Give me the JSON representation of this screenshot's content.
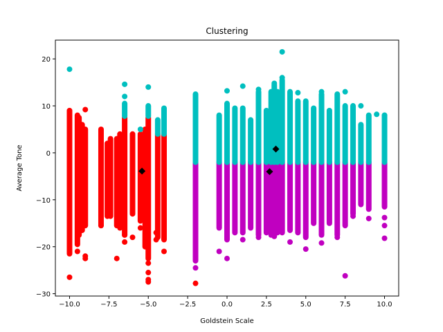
{
  "chart_data": {
    "type": "scatter",
    "title": "Clustering",
    "xlabel": "Goldstein Scale",
    "ylabel": "Average Tone",
    "xlim": [
      -10.9,
      10.9
    ],
    "ylim": [
      -30.5,
      24
    ],
    "xticks": [
      -10.0,
      -7.5,
      -5.0,
      -2.5,
      0.0,
      2.5,
      5.0,
      7.5,
      10.0
    ],
    "xtick_labels": [
      "−10.0",
      "−7.5",
      "−5.0",
      "−2.5",
      "0.0",
      "2.5",
      "5.0",
      "7.5",
      "10.0"
    ],
    "yticks": [
      -30,
      -20,
      -10,
      0,
      10,
      20
    ],
    "ytick_labels": [
      "−30",
      "−20",
      "−10",
      "0",
      "10",
      "20"
    ],
    "grid": false,
    "series": [
      {
        "color": "#ff0000",
        "columns": [
          {
            "x": -10.0,
            "ymin": -21.5,
            "ymax": 9.0
          },
          {
            "x": -9.5,
            "ymin": -19.5,
            "ymax": 8.0
          },
          {
            "x": -9.4,
            "ymin": -17.5,
            "ymax": 7.5
          },
          {
            "x": -9.2,
            "ymin": -16.5,
            "ymax": 6.0
          },
          {
            "x": -9.0,
            "ymin": -15.5,
            "ymax": 5.0
          },
          {
            "x": -8.0,
            "ymin": -15.5,
            "ymax": 5.0
          },
          {
            "x": -7.6,
            "ymin": -13.5,
            "ymax": 2.0
          },
          {
            "x": -7.4,
            "ymin": -13.5,
            "ymax": 3.0
          },
          {
            "x": -7.0,
            "ymin": -15.5,
            "ymax": 3.0
          },
          {
            "x": -6.8,
            "ymin": -16.0,
            "ymax": 4.0
          },
          {
            "x": -6.5,
            "ymin": -17.5,
            "ymax": 7.5
          },
          {
            "x": -6.0,
            "ymin": -13.0,
            "ymax": 4.0
          },
          {
            "x": -5.5,
            "ymin": -14.5,
            "ymax": 4.0
          },
          {
            "x": -5.2,
            "ymin": -20.0,
            "ymax": 5.0
          },
          {
            "x": -5.0,
            "ymin": -22.5,
            "ymax": 7.5
          },
          {
            "x": -4.4,
            "ymin": -18.0,
            "ymax": 4.0
          },
          {
            "x": -4.0,
            "ymin": -18.5,
            "ymax": 4.0
          }
        ],
        "points": [
          [
            -10.0,
            -26.5
          ],
          [
            -10.0,
            -21.0
          ],
          [
            -9.5,
            -21.0
          ],
          [
            -9.0,
            -22.5
          ],
          [
            -9.0,
            -22.0
          ],
          [
            -9.0,
            9.2
          ],
          [
            -8.0,
            -15.5
          ],
          [
            -7.0,
            -22.5
          ],
          [
            -6.5,
            -19.0
          ],
          [
            -6.5,
            -17.5
          ],
          [
            -6.0,
            -18.0
          ],
          [
            -5.5,
            -16.0
          ],
          [
            -5.0,
            -23.5
          ],
          [
            -5.0,
            -27.0
          ],
          [
            -5.0,
            -27.5
          ],
          [
            -5.0,
            -25.5
          ],
          [
            -4.5,
            -17.0
          ],
          [
            -4.5,
            -18.5
          ],
          [
            -4.0,
            -21.0
          ],
          [
            -2.0,
            -27.8
          ]
        ]
      },
      {
        "color": "#c000c0",
        "columns": [
          {
            "x": -2.0,
            "ymin": -23.0,
            "ymax": -2.0
          },
          {
            "x": -0.5,
            "ymin": -16.0,
            "ymax": -2.0
          },
          {
            "x": 0.0,
            "ymin": -18.5,
            "ymax": -2.0
          },
          {
            "x": 0.5,
            "ymin": -17.0,
            "ymax": -2.0
          },
          {
            "x": 1.0,
            "ymin": -17.0,
            "ymax": -2.0
          },
          {
            "x": 1.5,
            "ymin": -16.0,
            "ymax": -2.0
          },
          {
            "x": 2.0,
            "ymin": -17.5,
            "ymax": -2.0
          },
          {
            "x": 2.5,
            "ymin": -17.0,
            "ymax": -2.0
          },
          {
            "x": 2.8,
            "ymin": -17.5,
            "ymax": -2.0
          },
          {
            "x": 3.0,
            "ymin": -17.5,
            "ymax": -2.0
          },
          {
            "x": 3.2,
            "ymin": -17.0,
            "ymax": -2.0
          },
          {
            "x": 3.5,
            "ymin": -17.0,
            "ymax": -2.0
          },
          {
            "x": 4.0,
            "ymin": -16.5,
            "ymax": -2.0
          },
          {
            "x": 4.5,
            "ymin": -17.0,
            "ymax": -2.0
          },
          {
            "x": 5.0,
            "ymin": -18.0,
            "ymax": -2.0
          },
          {
            "x": 5.5,
            "ymin": -15.0,
            "ymax": -2.0
          },
          {
            "x": 6.0,
            "ymin": -17.5,
            "ymax": -2.0
          },
          {
            "x": 6.5,
            "ymin": -15.0,
            "ymax": -2.0
          },
          {
            "x": 7.0,
            "ymin": -17.5,
            "ymax": -2.0
          },
          {
            "x": 7.5,
            "ymin": -15.5,
            "ymax": -2.0
          },
          {
            "x": 8.0,
            "ymin": -13.0,
            "ymax": -2.0
          },
          {
            "x": 8.5,
            "ymin": -11.0,
            "ymax": -2.0
          },
          {
            "x": 9.0,
            "ymin": -12.0,
            "ymax": -2.0
          },
          {
            "x": 10.0,
            "ymin": -11.5,
            "ymax": -2.0
          }
        ],
        "points": [
          [
            -2.0,
            -24.5
          ],
          [
            -2.0,
            -22.0
          ],
          [
            -0.5,
            -21.0
          ],
          [
            0.0,
            -22.5
          ],
          [
            1.0,
            -18.5
          ],
          [
            2.0,
            -18.0
          ],
          [
            3.0,
            -17.8
          ],
          [
            4.0,
            -19.0
          ],
          [
            5.0,
            -20.5
          ],
          [
            6.0,
            -19.2
          ],
          [
            7.0,
            -18.0
          ],
          [
            7.5,
            -26.2
          ],
          [
            8.0,
            -13.5
          ],
          [
            9.0,
            -14.0
          ],
          [
            10.0,
            -15.5
          ],
          [
            10.0,
            -18.2
          ],
          [
            10.0,
            -13.8
          ]
        ]
      },
      {
        "color": "#00bfbf",
        "columns": [
          {
            "x": -2.0,
            "ymin": -2.0,
            "ymax": 12.5
          },
          {
            "x": -0.5,
            "ymin": -2.0,
            "ymax": 8.0
          },
          {
            "x": 0.0,
            "ymin": -2.0,
            "ymax": 10.5
          },
          {
            "x": 0.5,
            "ymin": -2.0,
            "ymax": 9.5
          },
          {
            "x": 1.0,
            "ymin": -2.0,
            "ymax": 9.5
          },
          {
            "x": 1.5,
            "ymin": -2.0,
            "ymax": 7.0
          },
          {
            "x": 2.0,
            "ymin": -2.0,
            "ymax": 13.0
          },
          {
            "x": 2.5,
            "ymin": -2.0,
            "ymax": 9.0
          },
          {
            "x": 2.8,
            "ymin": -2.0,
            "ymax": 13.0
          },
          {
            "x": 3.0,
            "ymin": -2.0,
            "ymax": 14.5
          },
          {
            "x": 3.2,
            "ymin": -2.0,
            "ymax": 13.0
          },
          {
            "x": 3.5,
            "ymin": -2.0,
            "ymax": 15.5
          },
          {
            "x": 4.0,
            "ymin": -2.0,
            "ymax": 13.0
          },
          {
            "x": 4.5,
            "ymin": -2.0,
            "ymax": 11.0
          },
          {
            "x": 5.0,
            "ymin": -2.0,
            "ymax": 11.0
          },
          {
            "x": 5.5,
            "ymin": -2.0,
            "ymax": 9.5
          },
          {
            "x": 6.0,
            "ymin": -2.0,
            "ymax": 12.5
          },
          {
            "x": 6.5,
            "ymin": -2.0,
            "ymax": 9.0
          },
          {
            "x": 7.0,
            "ymin": -2.0,
            "ymax": 12.5
          },
          {
            "x": 7.5,
            "ymin": -2.0,
            "ymax": 10.0
          },
          {
            "x": 8.0,
            "ymin": -2.0,
            "ymax": 10.0
          },
          {
            "x": 8.5,
            "ymin": -2.0,
            "ymax": 6.0
          },
          {
            "x": 9.0,
            "ymin": -2.0,
            "ymax": 8.0
          },
          {
            "x": 10.0,
            "ymin": -2.0,
            "ymax": 8.0
          },
          {
            "x": -6.5,
            "ymin": 7.8,
            "ymax": 10.5
          },
          {
            "x": -5.0,
            "ymin": 7.8,
            "ymax": 10.0
          },
          {
            "x": -4.4,
            "ymin": 4.0,
            "ymax": 7.0
          },
          {
            "x": -4.0,
            "ymin": 4.0,
            "ymax": 9.5
          }
        ],
        "points": [
          [
            -10.0,
            17.8
          ],
          [
            -6.5,
            14.6
          ],
          [
            -6.5,
            12.0
          ],
          [
            -5.0,
            14.0
          ],
          [
            -5.5,
            5.0
          ],
          [
            -4.0,
            9.0
          ],
          [
            0.0,
            13.2
          ],
          [
            1.0,
            14.2
          ],
          [
            2.0,
            13.5
          ],
          [
            3.0,
            14.8
          ],
          [
            3.5,
            21.5
          ],
          [
            3.5,
            16.0
          ],
          [
            4.5,
            12.8
          ],
          [
            6.0,
            13.0
          ],
          [
            7.5,
            13.0
          ],
          [
            8.5,
            10.0
          ],
          [
            9.5,
            8.2
          ],
          [
            10.0,
            8.0
          ]
        ]
      },
      {
        "color": "#000000",
        "marker": "diamond",
        "points": [
          [
            -5.4,
            -3.9
          ],
          [
            2.7,
            -4.0
          ],
          [
            3.1,
            0.8
          ]
        ]
      }
    ]
  }
}
